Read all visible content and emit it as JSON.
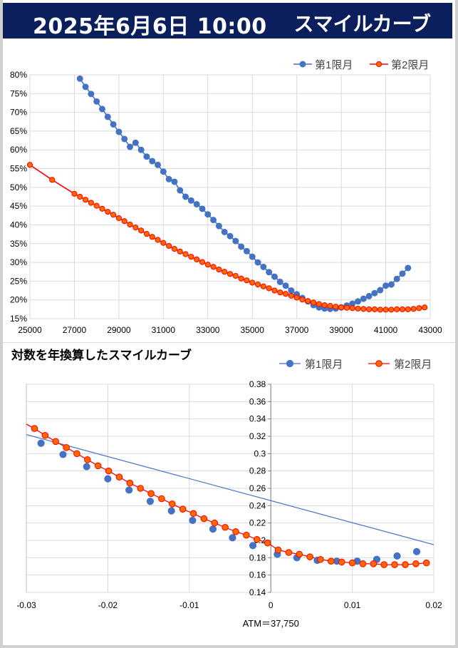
{
  "header": {
    "datetime": "2025年6月6日 10:00",
    "title": "スマイルカーブ"
  },
  "colors": {
    "header_bg": "#0b1f5c",
    "series1": "#4472c4",
    "series2_line": "#ff0000",
    "series2_fill": "#ff6a00",
    "grid": "#d9d9d9"
  },
  "chart_data": [
    {
      "type": "line",
      "title": "",
      "legend_position": "top-right",
      "grid": true,
      "xlim": [
        25000,
        43000
      ],
      "ylim": [
        0.15,
        0.8
      ],
      "x_ticks": [
        "25000",
        "27000",
        "29000",
        "31000",
        "33000",
        "35000",
        "37000",
        "39000",
        "41000",
        "43000"
      ],
      "y_ticks": [
        "15%",
        "20%",
        "25%",
        "30%",
        "35%",
        "40%",
        "45%",
        "50%",
        "55%",
        "60%",
        "65%",
        "70%",
        "75%",
        "80%"
      ],
      "series": [
        {
          "name": "第1限月",
          "x": [
            27250,
            27500,
            27750,
            28000,
            28250,
            28500,
            28750,
            29000,
            29250,
            29500,
            29750,
            30000,
            30250,
            30500,
            30750,
            31000,
            31250,
            31500,
            31750,
            32000,
            32250,
            32500,
            32750,
            33000,
            33250,
            33500,
            33750,
            34000,
            34250,
            34500,
            34750,
            35000,
            35250,
            35500,
            35750,
            36000,
            36250,
            36500,
            36750,
            37000,
            37250,
            37500,
            37750,
            38000,
            38250,
            38500,
            38750,
            39000,
            39250,
            39500,
            39750,
            40000,
            40250,
            40500,
            40750,
            41000,
            41250,
            41500,
            41750,
            42000
          ],
          "y": [
            0.79,
            0.768,
            0.749,
            0.729,
            0.709,
            0.688,
            0.668,
            0.648,
            0.629,
            0.608,
            0.619,
            0.6,
            0.582,
            0.57,
            0.56,
            0.542,
            0.522,
            0.515,
            0.492,
            0.475,
            0.465,
            0.455,
            0.443,
            0.428,
            0.413,
            0.397,
            0.381,
            0.37,
            0.357,
            0.342,
            0.33,
            0.315,
            0.3,
            0.288,
            0.274,
            0.262,
            0.248,
            0.238,
            0.225,
            0.215,
            0.205,
            0.196,
            0.186,
            0.18,
            0.177,
            0.176,
            0.177,
            0.18,
            0.185,
            0.19,
            0.196,
            0.203,
            0.21,
            0.218,
            0.226,
            0.238,
            0.241,
            0.256,
            0.27,
            0.285
          ]
        },
        {
          "name": "第2限月",
          "x": [
            25000,
            26000,
            27000,
            27250,
            27500,
            27750,
            28000,
            28250,
            28500,
            28750,
            29000,
            29250,
            29500,
            29750,
            30000,
            30250,
            30500,
            30750,
            31000,
            31250,
            31500,
            31750,
            32000,
            32250,
            32500,
            32750,
            33000,
            33250,
            33500,
            33750,
            34000,
            34250,
            34500,
            34750,
            35000,
            35250,
            35500,
            35750,
            36000,
            36250,
            36500,
            36750,
            37000,
            37250,
            37500,
            37750,
            38000,
            38250,
            38500,
            38750,
            39000,
            39250,
            39500,
            39750,
            40000,
            40250,
            40500,
            40750,
            41000,
            41250,
            41500,
            41750,
            42000,
            42250,
            42500,
            42750
          ],
          "y": [
            0.56,
            0.52,
            0.483,
            0.475,
            0.467,
            0.459,
            0.451,
            0.443,
            0.435,
            0.427,
            0.418,
            0.41,
            0.401,
            0.393,
            0.385,
            0.376,
            0.368,
            0.36,
            0.352,
            0.344,
            0.336,
            0.329,
            0.322,
            0.315,
            0.308,
            0.301,
            0.294,
            0.288,
            0.281,
            0.275,
            0.269,
            0.264,
            0.257,
            0.252,
            0.246,
            0.241,
            0.236,
            0.231,
            0.225,
            0.22,
            0.216,
            0.211,
            0.206,
            0.201,
            0.197,
            0.193,
            0.189,
            0.186,
            0.184,
            0.182,
            0.18,
            0.179,
            0.178,
            0.177,
            0.176,
            0.175,
            0.175,
            0.174,
            0.174,
            0.174,
            0.175,
            0.175,
            0.175,
            0.176,
            0.178,
            0.18
          ]
        }
      ]
    },
    {
      "type": "scatter",
      "title": "対数を年換算したスマイルカーブ",
      "legend_position": "top-right",
      "grid": true,
      "xlim": [
        -0.03,
        0.02
      ],
      "ylim": [
        0.14,
        0.38
      ],
      "x_ticks": [
        "-0.03",
        "-0.02",
        "-0.01",
        "0",
        "0.01",
        "0.02"
      ],
      "y_ticks": [
        "0.14",
        "0.16",
        "0.18",
        "0.2",
        "0.22",
        "0.24",
        "0.26",
        "0.28",
        "0.3",
        "0.32",
        "0.34",
        "0.36",
        "0.38"
      ],
      "annotation": "ATM＝37,750",
      "series": [
        {
          "name": "第1限月",
          "x": [
            -0.0282,
            -0.0255,
            -0.0226,
            -0.02,
            -0.0174,
            -0.0148,
            -0.0122,
            -0.0096,
            -0.0071,
            -0.0047,
            -0.0022,
            0.0008,
            0.0032,
            0.0057,
            0.0081,
            0.0106,
            0.013,
            0.0155,
            0.0179
          ],
          "y": [
            0.312,
            0.299,
            0.285,
            0.271,
            0.258,
            0.245,
            0.234,
            0.223,
            0.213,
            0.203,
            0.194,
            0.184,
            0.18,
            0.177,
            0.176,
            0.176,
            0.178,
            0.182,
            0.187
          ],
          "trend": {
            "x": [
              -0.03,
              0.02
            ],
            "y": [
              0.322,
              0.195
            ]
          }
        },
        {
          "name": "第2限月",
          "x": [
            -0.029,
            -0.0277,
            -0.0264,
            -0.0251,
            -0.0238,
            -0.0225,
            -0.0212,
            -0.0199,
            -0.0186,
            -0.0173,
            -0.016,
            -0.0147,
            -0.0134,
            -0.0121,
            -0.0108,
            -0.0095,
            -0.0082,
            -0.0069,
            -0.0056,
            -0.0043,
            -0.003,
            -0.0017,
            -0.0004,
            0.0009,
            0.0022,
            0.0035,
            0.0048,
            0.0061,
            0.0074,
            0.0087,
            0.01,
            0.0113,
            0.0126,
            0.0139,
            0.0152,
            0.0165,
            0.0178,
            0.0191
          ],
          "y": [
            0.329,
            0.321,
            0.314,
            0.307,
            0.3,
            0.293,
            0.286,
            0.28,
            0.273,
            0.266,
            0.26,
            0.254,
            0.248,
            0.242,
            0.236,
            0.231,
            0.225,
            0.22,
            0.215,
            0.21,
            0.206,
            0.201,
            0.197,
            0.189,
            0.186,
            0.184,
            0.181,
            0.178,
            0.176,
            0.175,
            0.174,
            0.173,
            0.173,
            0.172,
            0.172,
            0.172,
            0.173,
            0.174
          ]
        }
      ]
    }
  ]
}
